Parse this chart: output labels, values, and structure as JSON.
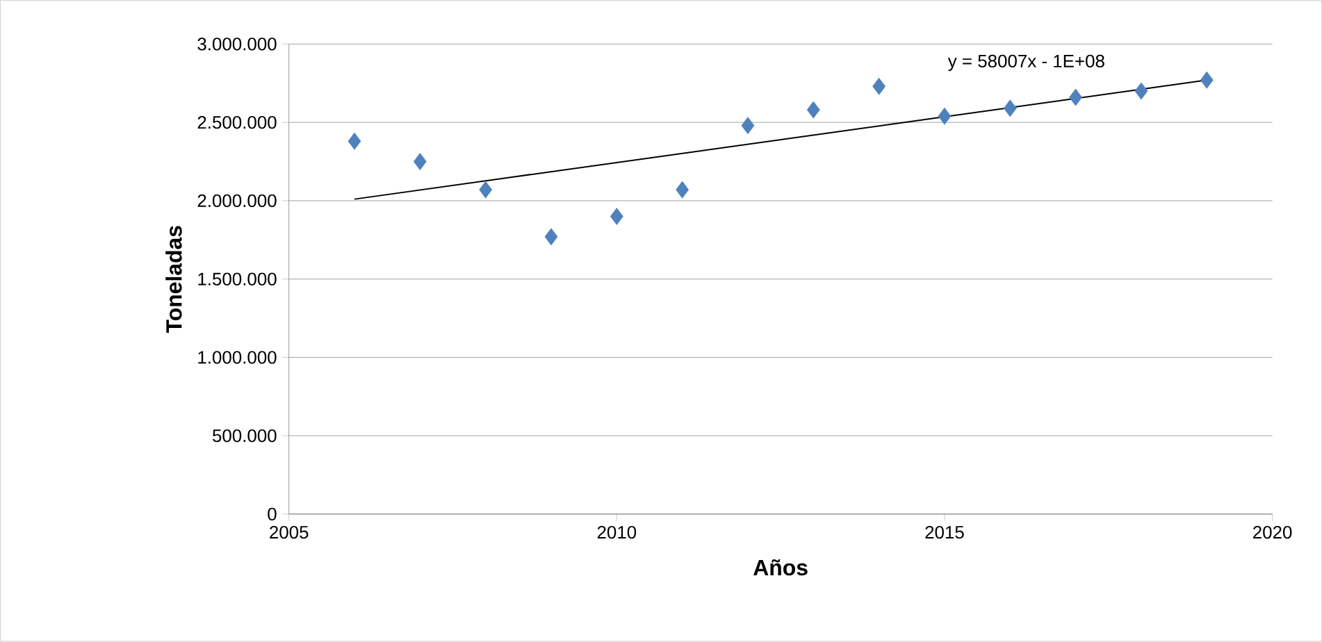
{
  "chart_data": {
    "type": "scatter",
    "xlabel": "Años",
    "ylabel": "Toneladas",
    "series": [
      {
        "color": "#4f81bd",
        "marker": "diamond",
        "x": [
          2006,
          2007,
          2008,
          2009,
          2010,
          2011,
          2012,
          2013,
          2014,
          2015,
          2016,
          2017,
          2018,
          2019
        ],
        "values": [
          2380000,
          2250000,
          2070000,
          1770000,
          1900000,
          2070000,
          2480000,
          2580000,
          2730000,
          2540000,
          2590000,
          2660000,
          2700000,
          2770000
        ]
      },
      {
        "type": "line",
        "color": "#000000",
        "x": [
          2006,
          2019
        ],
        "values": [
          2010000,
          2770000
        ]
      }
    ],
    "annotations": [
      "y = 58007x - 1E+08"
    ],
    "xlim": [
      2005,
      2020
    ],
    "xticks": [
      2005,
      2010,
      2015,
      2020
    ],
    "ylim": [
      0,
      3000000
    ],
    "yticks": [
      {
        "value": 0,
        "label": "0"
      },
      {
        "value": 500000,
        "label": "500.000"
      },
      {
        "value": 1000000,
        "label": "1.000.000"
      },
      {
        "value": 1500000,
        "label": "1.500.000"
      },
      {
        "value": 2000000,
        "label": "2.000.000"
      },
      {
        "value": 2500000,
        "label": "2.500.000"
      },
      {
        "value": 3000000,
        "label": "3.000.000"
      }
    ],
    "grid": "y"
  }
}
